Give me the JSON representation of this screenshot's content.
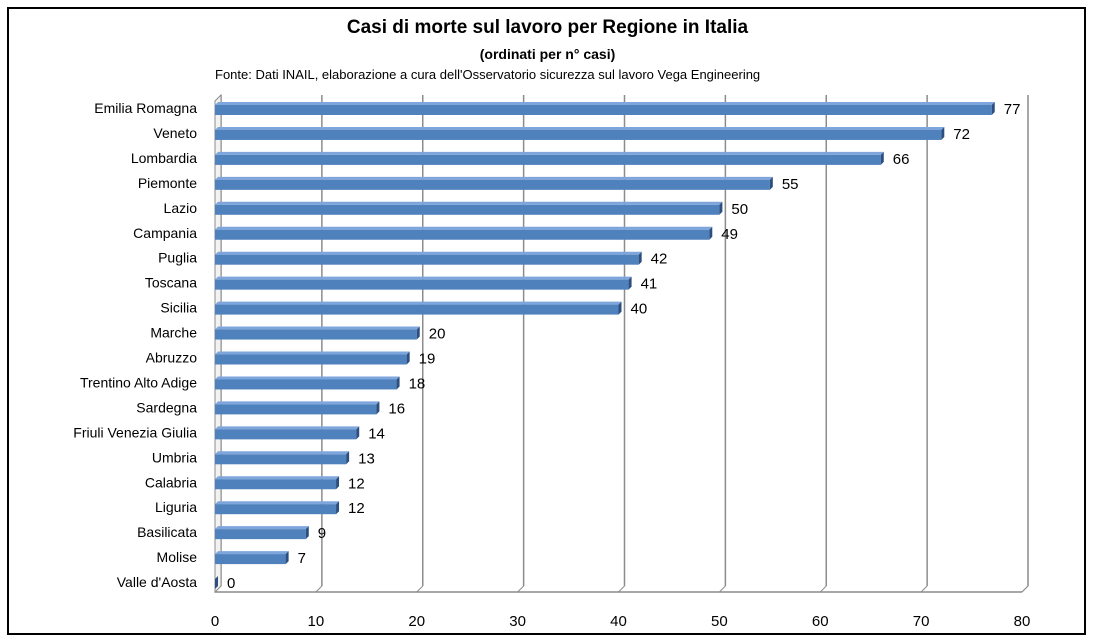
{
  "chart_data": {
    "type": "bar",
    "orientation": "horizontal",
    "title": "Casi di morte sul lavoro per Regione in Italia",
    "subtitle": "(ordinati per n° casi)",
    "source": "Fonte: Dati INAIL, elaborazione a cura dell'Osservatorio sicurezza sul lavoro Vega Engineering",
    "categories": [
      "Emilia Romagna",
      "Veneto",
      "Lombardia",
      "Piemonte",
      "Lazio",
      "Campania",
      "Puglia",
      "Toscana",
      "Sicilia",
      "Marche",
      "Abruzzo",
      "Trentino Alto Adige",
      "Sardegna",
      "Friuli Venezia Giulia",
      "Umbria",
      "Calabria",
      "Liguria",
      "Basilicata",
      "Molise",
      "Valle d'Aosta"
    ],
    "values": [
      77,
      72,
      66,
      55,
      50,
      49,
      42,
      41,
      40,
      20,
      19,
      18,
      16,
      14,
      13,
      12,
      12,
      9,
      7,
      0
    ],
    "xlim": [
      0,
      80
    ],
    "xticks": [
      0,
      10,
      20,
      30,
      40,
      50,
      60,
      70,
      80
    ],
    "grid": true,
    "legend": "none",
    "colors": {
      "bar": "#4f81bd",
      "bar_top": "#7ea6dc",
      "bar_side": "#2c4f80",
      "grid": "#8c8c8c"
    }
  }
}
